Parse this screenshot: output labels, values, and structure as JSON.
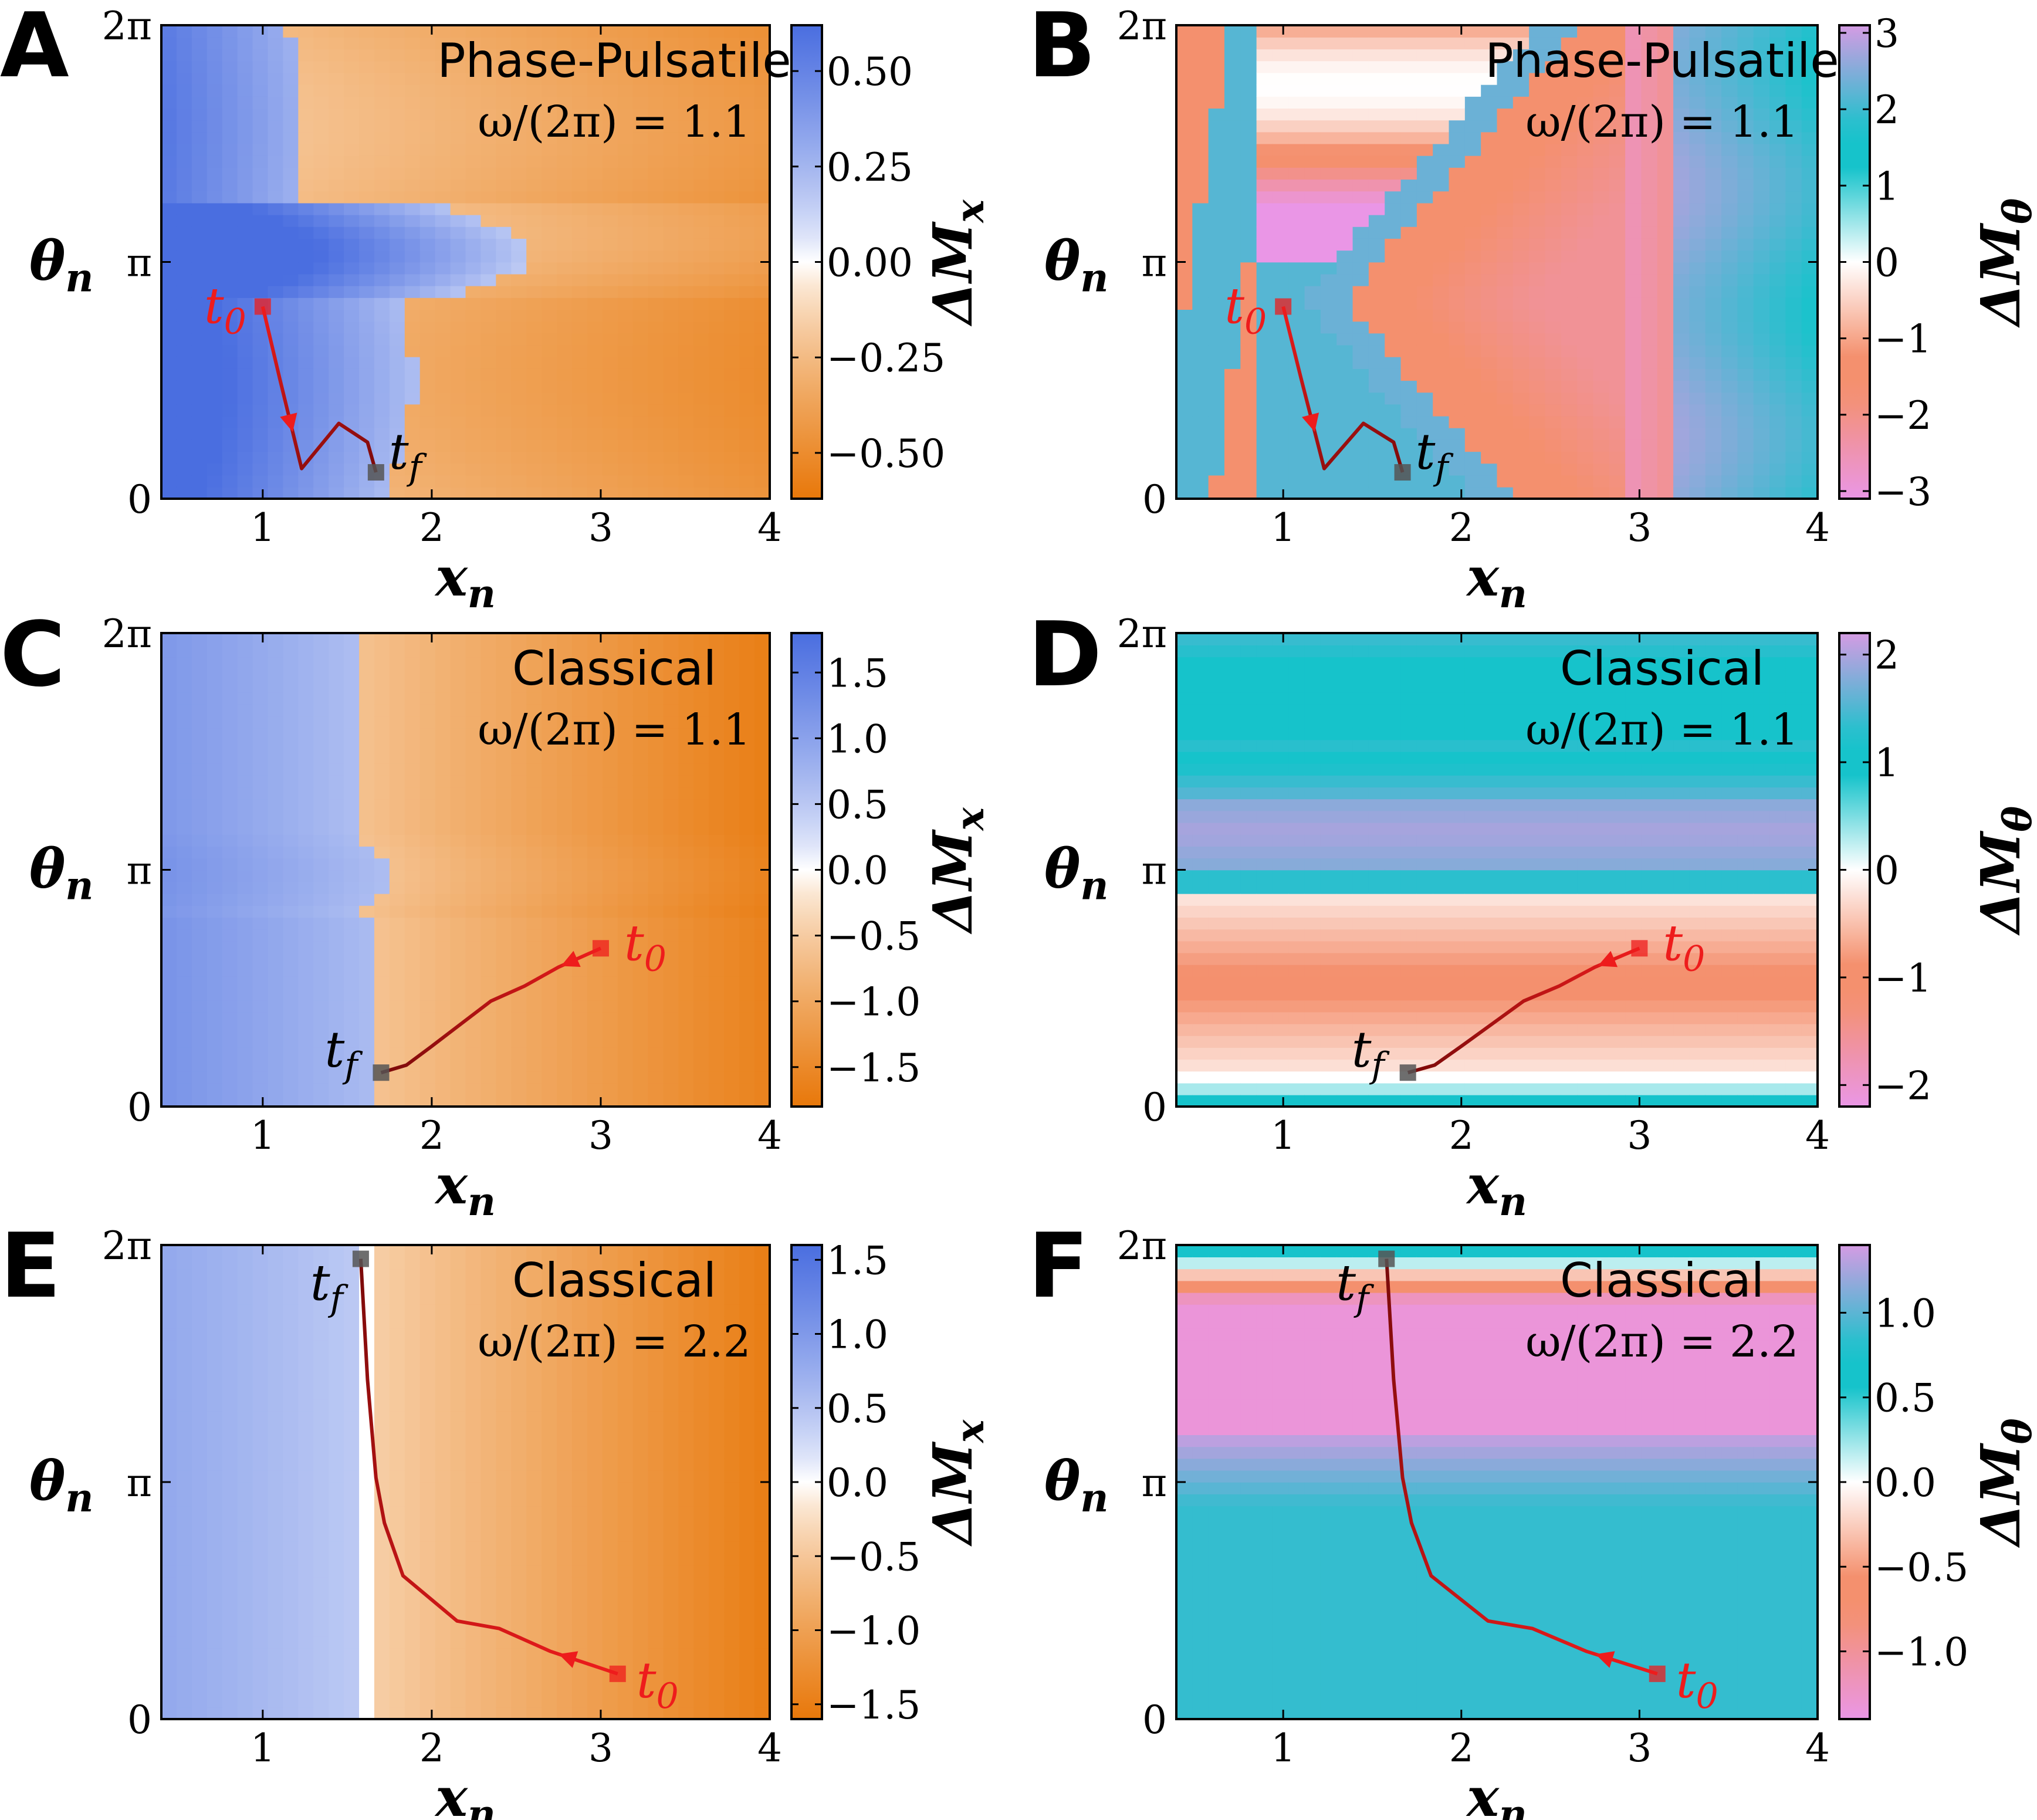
{
  "colors": {
    "blue": "#4a6ee0",
    "orange": "#e8780a",
    "teal": "#16c3cb",
    "salmon": "#f4906e",
    "pink": "#ea96e6",
    "red": "#ee1c1c",
    "darkred": "#7a0a0a"
  },
  "chart_data": [
    {
      "type": "heatmap",
      "panel": "A",
      "title": "Phase-Pulsatile",
      "subtitle": "ω/(2π) = 1.1",
      "xlabel": "xn",
      "ylabel": "θn",
      "colorbar_label": "ΔMx",
      "xlim": [
        0.4,
        4
      ],
      "ylim": [
        0,
        6.2832
      ],
      "xticks": [
        "1",
        "2",
        "3",
        "4"
      ],
      "yticks": [
        "0",
        "π",
        "2π"
      ],
      "cbar": "blue-orange",
      "clim": [
        -0.62,
        0.62
      ],
      "cbar_ticks": [
        0.5,
        0.25,
        0.0,
        -0.25,
        -0.5
      ],
      "cbar_tick_labels": [
        "0.50",
        "0.25",
        "0.00",
        "−0.25",
        "−0.50"
      ],
      "trajectory": {
        "x": [
          1.0,
          1.1,
          1.23,
          1.45,
          1.62,
          1.67
        ],
        "y": [
          2.55,
          1.6,
          0.4,
          1.0,
          0.75,
          0.35
        ]
      },
      "t0": {
        "x": 1.0,
        "y": 2.55,
        "label": "t0"
      },
      "tf": {
        "x": 1.67,
        "y": 0.35,
        "label": "tf"
      }
    },
    {
      "type": "heatmap",
      "panel": "B",
      "title": "Phase-Pulsatile",
      "subtitle": "ω/(2π) = 1.1",
      "xlabel": "xn",
      "ylabel": "θn",
      "colorbar_label": "ΔMθ",
      "xlim": [
        0.4,
        4
      ],
      "ylim": [
        0,
        6.2832
      ],
      "xticks": [
        "1",
        "2",
        "3",
        "4"
      ],
      "yticks": [
        "0",
        "π",
        "2π"
      ],
      "cbar": "pink-teal",
      "clim": [
        -3.1,
        3.1
      ],
      "cbar_ticks": [
        3,
        2,
        1,
        0,
        -1,
        -2,
        -3
      ],
      "cbar_tick_labels": [
        "3",
        "2",
        "1",
        "0",
        "−1",
        "−2",
        "−3"
      ],
      "trajectory": {
        "x": [
          1.0,
          1.1,
          1.23,
          1.45,
          1.62,
          1.67
        ],
        "y": [
          2.55,
          1.6,
          0.4,
          1.0,
          0.75,
          0.35
        ]
      },
      "t0": {
        "x": 1.0,
        "y": 2.55,
        "label": "t0"
      },
      "tf": {
        "x": 1.67,
        "y": 0.35,
        "label": "tf"
      }
    },
    {
      "type": "heatmap",
      "panel": "C",
      "title": "Classical",
      "subtitle": "ω/(2π) = 1.1",
      "xlabel": "xn",
      "ylabel": "θn",
      "colorbar_label": "ΔMx",
      "xlim": [
        0.4,
        4
      ],
      "ylim": [
        0,
        6.2832
      ],
      "xticks": [
        "1",
        "2",
        "3",
        "4"
      ],
      "yticks": [
        "0",
        "π",
        "2π"
      ],
      "cbar": "blue-orange",
      "clim": [
        -1.8,
        1.8
      ],
      "cbar_ticks": [
        1.5,
        1.0,
        0.5,
        0.0,
        -0.5,
        -1.0,
        -1.5
      ],
      "cbar_tick_labels": [
        "1.5",
        "1.0",
        "0.5",
        "0.0",
        "−0.5",
        "−1.0",
        "−1.5"
      ],
      "trajectory": {
        "x": [
          3.0,
          2.75,
          2.55,
          2.35,
          2.0,
          1.85,
          1.7
        ],
        "y": [
          2.1,
          1.85,
          1.6,
          1.4,
          0.8,
          0.55,
          0.45
        ]
      },
      "t0": {
        "x": 3.0,
        "y": 2.1,
        "label": "t0"
      },
      "tf": {
        "x": 1.7,
        "y": 0.45,
        "label": "tf"
      }
    },
    {
      "type": "heatmap",
      "panel": "D",
      "title": "Classical",
      "subtitle": "ω/(2π) = 1.1",
      "xlabel": "xn",
      "ylabel": "θn",
      "colorbar_label": "ΔMθ",
      "xlim": [
        0.4,
        4
      ],
      "ylim": [
        0,
        6.2832
      ],
      "xticks": [
        "1",
        "2",
        "3",
        "4"
      ],
      "yticks": [
        "0",
        "π",
        "2π"
      ],
      "cbar": "pink-teal",
      "clim": [
        -2.2,
        2.2
      ],
      "cbar_ticks": [
        2,
        1,
        0,
        -1,
        -2
      ],
      "cbar_tick_labels": [
        "2",
        "1",
        "0",
        "−1",
        "−2"
      ],
      "trajectory": {
        "x": [
          3.0,
          2.75,
          2.55,
          2.35,
          2.0,
          1.85,
          1.7
        ],
        "y": [
          2.1,
          1.85,
          1.6,
          1.4,
          0.8,
          0.55,
          0.45
        ]
      },
      "t0": {
        "x": 3.0,
        "y": 2.1,
        "label": "t0"
      },
      "tf": {
        "x": 1.7,
        "y": 0.45,
        "label": "tf"
      }
    },
    {
      "type": "heatmap",
      "panel": "E",
      "title": "Classical",
      "subtitle": "ω/(2π) = 2.2",
      "xlabel": "xn",
      "ylabel": "θn",
      "colorbar_label": "ΔMx",
      "xlim": [
        0.4,
        4
      ],
      "ylim": [
        0,
        6.2832
      ],
      "xticks": [
        "1",
        "2",
        "3",
        "4"
      ],
      "yticks": [
        "0",
        "π",
        "2π"
      ],
      "cbar": "blue-orange",
      "clim": [
        -1.6,
        1.6
      ],
      "cbar_ticks": [
        1.5,
        1.0,
        0.5,
        0.0,
        -0.5,
        -1.0,
        -1.5
      ],
      "cbar_tick_labels": [
        "1.5",
        "1.0",
        "0.5",
        "0.0",
        "−0.5",
        "−1.0",
        "−1.5"
      ],
      "trajectory": {
        "x": [
          3.1,
          2.7,
          2.4,
          2.15,
          1.83,
          1.72,
          1.67,
          1.62,
          1.58
        ],
        "y": [
          0.6,
          0.9,
          1.2,
          1.3,
          1.9,
          2.6,
          3.2,
          4.5,
          6.1
        ]
      },
      "t0": {
        "x": 3.1,
        "y": 0.6,
        "label": "t0"
      },
      "tf": {
        "x": 1.58,
        "y": 6.1,
        "label": "tf"
      }
    },
    {
      "type": "heatmap",
      "panel": "F",
      "title": "Classical",
      "subtitle": "ω/(2π) = 2.2",
      "xlabel": "xn",
      "ylabel": "θn",
      "colorbar_label": "ΔMθ",
      "xlim": [
        0.4,
        4
      ],
      "ylim": [
        0,
        6.2832
      ],
      "xticks": [
        "1",
        "2",
        "3",
        "4"
      ],
      "yticks": [
        "0",
        "π",
        "2π"
      ],
      "cbar": "pink-teal",
      "clim": [
        -1.4,
        1.4
      ],
      "cbar_ticks": [
        1.0,
        0.5,
        0.0,
        -0.5,
        -1.0
      ],
      "cbar_tick_labels": [
        "1.0",
        "0.5",
        "0.0",
        "−0.5",
        "−1.0"
      ],
      "trajectory": {
        "x": [
          3.1,
          2.7,
          2.4,
          2.15,
          1.83,
          1.72,
          1.67,
          1.62,
          1.58
        ],
        "y": [
          0.6,
          0.9,
          1.2,
          1.3,
          1.9,
          2.6,
          3.2,
          4.5,
          6.1
        ]
      },
      "t0": {
        "x": 3.1,
        "y": 0.6,
        "label": "t0"
      },
      "tf": {
        "x": 1.58,
        "y": 6.1,
        "label": "tf"
      }
    }
  ]
}
